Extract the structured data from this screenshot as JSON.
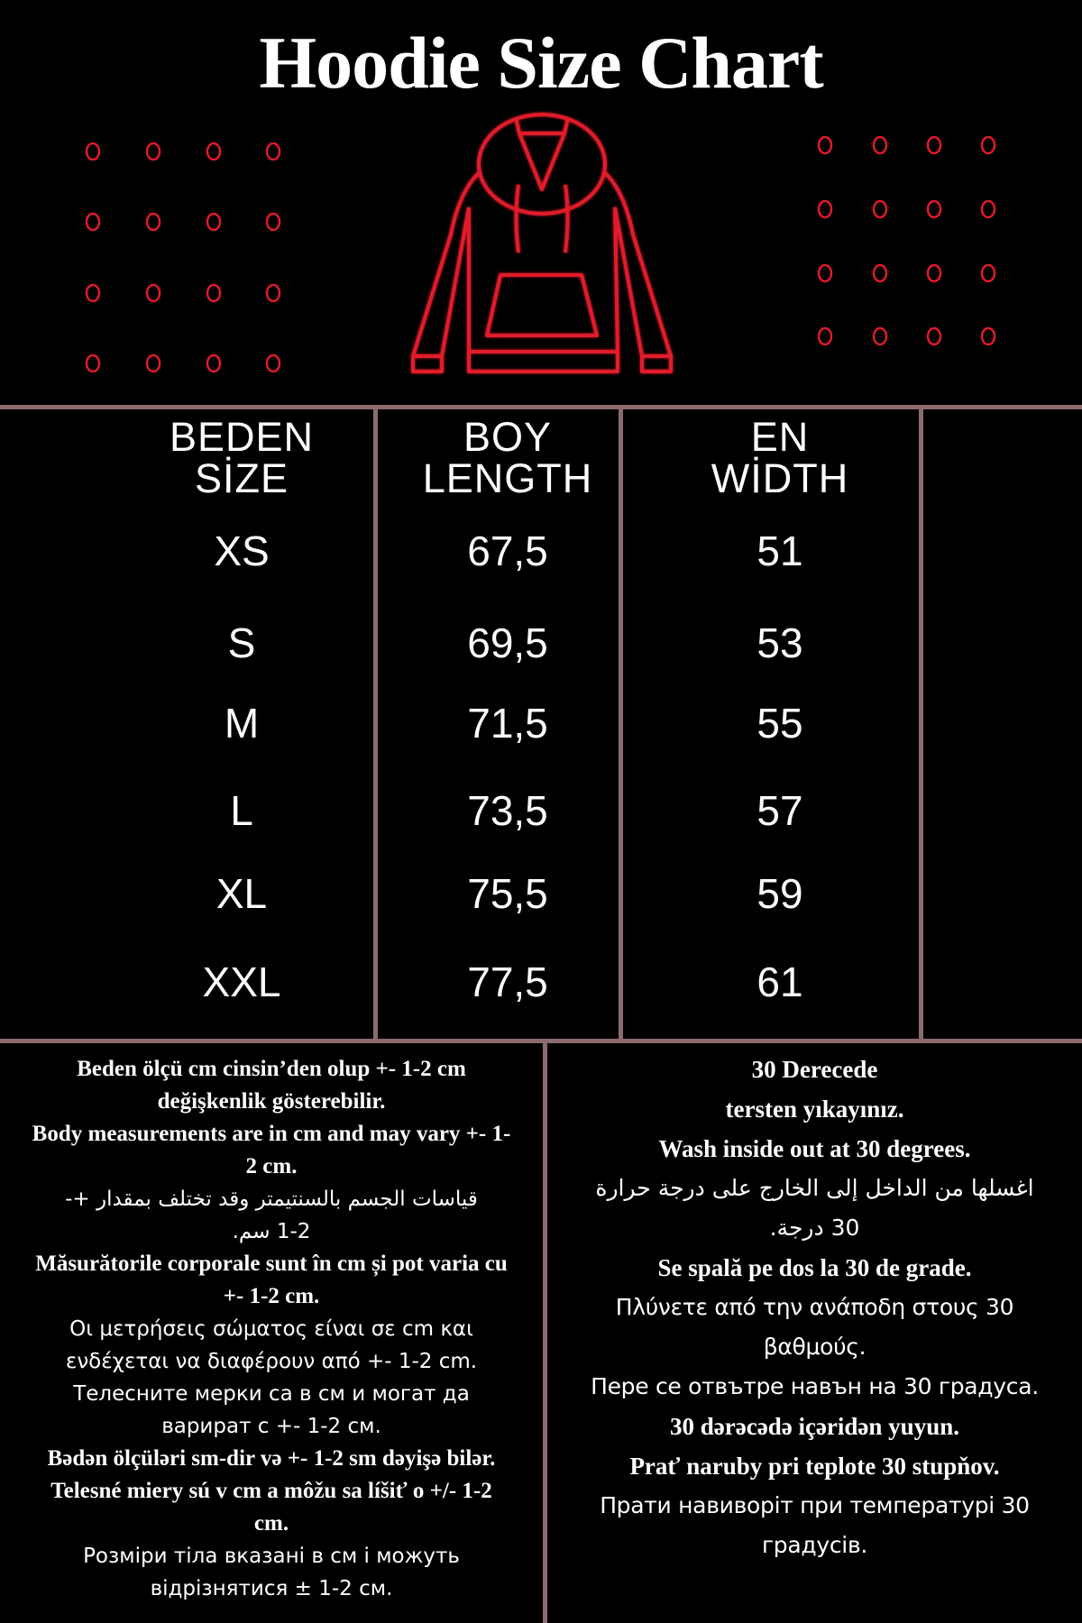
{
  "title": "Hoodie Size Chart",
  "colors": {
    "background": "#000000",
    "accent_red": "#e01a2b",
    "divider": "#8b6b70",
    "text": "#ffffff"
  },
  "icons": [
    "hoodie-outline-icon",
    "dot-grid-decoration"
  ],
  "table": {
    "headers": [
      {
        "line1": "BEDEN",
        "line2": "SİZE"
      },
      {
        "line1": "BOY",
        "line2": "LENGTH"
      },
      {
        "line1": "EN",
        "line2": "WİDTH"
      }
    ],
    "rows": [
      {
        "size": "XS",
        "length": "67,5",
        "width": "51"
      },
      {
        "size": "S",
        "length": "69,5",
        "width": "53"
      },
      {
        "size": "M",
        "length": "71,5",
        "width": "55"
      },
      {
        "size": "L",
        "length": "73,5",
        "width": "57"
      },
      {
        "size": "XL",
        "length": "75,5",
        "width": "59"
      },
      {
        "size": "XXL",
        "length": "77,5",
        "width": "61"
      }
    ]
  },
  "notes_left": [
    "Beden ölçü cm cinsin’den olup +- 1-2 cm",
    "değişkenlik gösterebilir.",
    "Body measurements are in cm and may vary +- 1-",
    "2 cm.",
    "قياسات الجسم بالسنتيمتر وقد تختلف بمقدار +-",
    "1-2 سم.",
    "Măsurătorile corporale sunt în cm și pot varia cu",
    "+- 1-2 cm.",
    "Οι μετρήσεις σώματος είναι σε cm και",
    "ενδέχεται να διαφέρουν από +- 1-2 cm.",
    "Телесните мерки са в см и могат да",
    "варират с +- 1-2 см.",
    "Bədən ölçüləri sm-dir və +- 1-2 sm dəyişə bilər.",
    "Telesné miery sú v cm a môžu sa líšiť o +/- 1-2",
    "cm.",
    "Розміри тіла вказані в см і можуть",
    "відрізнятися ± 1-2 см."
  ],
  "notes_right": [
    "30 Derecede",
    "tersten yıkayınız.",
    "Wash inside out at 30 degrees.",
    "اغسلها من الداخل إلى الخارج على درجة حرارة",
    "30 درجة.",
    "Se spală pe dos la 30 de grade.",
    "Πλύνετε από την ανάποδη στους 30",
    "βαθμούς.",
    "Пере се отвътре навън на 30 градуса.",
    "30 dərəcədə içəridən yuyun.",
    "Prať naruby pri teplote 30 stupňov.",
    "Прати навиворіт при температурі 30",
    "градусів."
  ]
}
